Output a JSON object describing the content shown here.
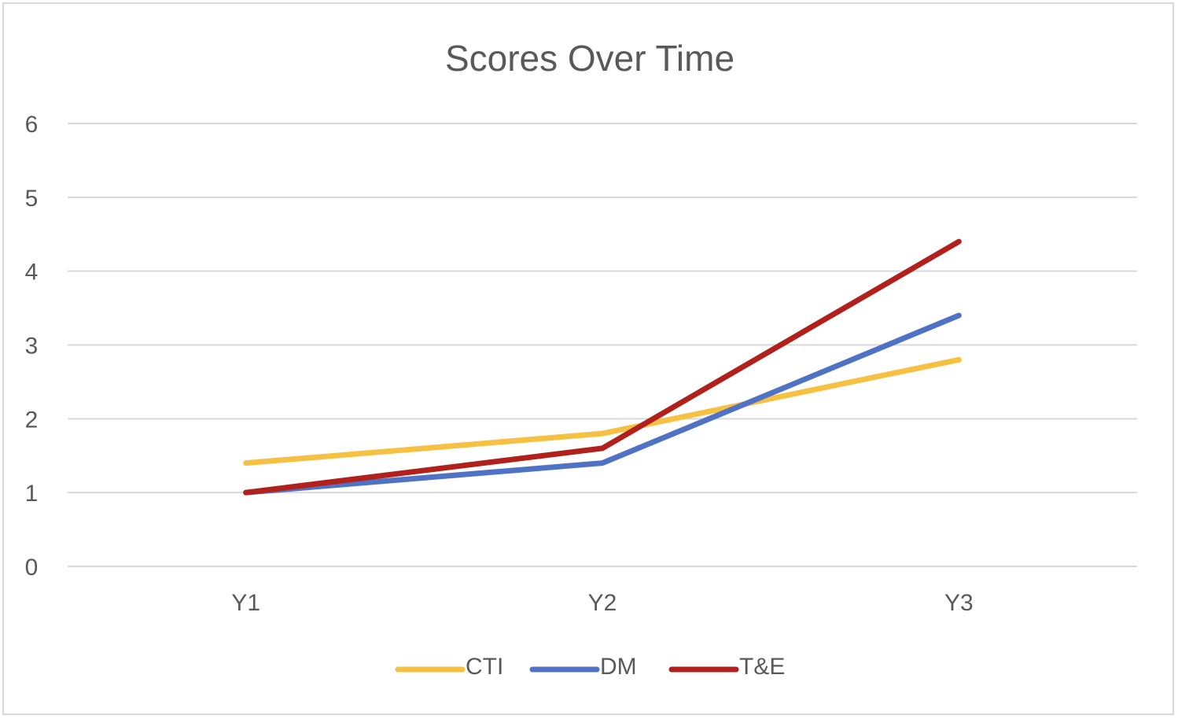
{
  "chart_data": {
    "type": "line",
    "title": "Scores Over Time",
    "xlabel": "",
    "ylabel": "",
    "categories": [
      "Y1",
      "Y2",
      "Y3"
    ],
    "ylim": [
      0,
      6
    ],
    "yticks": [
      0,
      1,
      2,
      3,
      4,
      5,
      6
    ],
    "grid": true,
    "legend_position": "bottom",
    "series": [
      {
        "name": "CTI",
        "color": "#f6c142",
        "values": [
          1.4,
          1.8,
          2.8
        ]
      },
      {
        "name": "DM",
        "color": "#4f72c4",
        "values": [
          1.0,
          1.4,
          3.4
        ]
      },
      {
        "name": "T&E",
        "color": "#b1201b",
        "values": [
          1.0,
          1.6,
          4.4
        ]
      }
    ]
  }
}
